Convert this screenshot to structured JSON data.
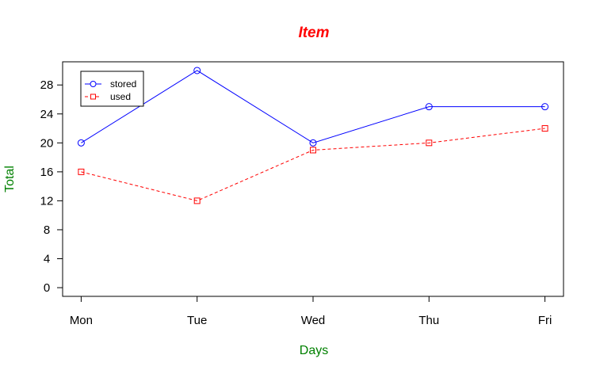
{
  "chart_data": {
    "type": "line",
    "title": "Item",
    "xlabel": "Days",
    "ylabel": "Total",
    "categories": [
      "Mon",
      "Tue",
      "Wed",
      "Thu",
      "Fri"
    ],
    "yticks": [
      0,
      4,
      8,
      12,
      16,
      20,
      24,
      28
    ],
    "ylim": [
      -1.2,
      31.2
    ],
    "grid": false,
    "legend_position": "top-left",
    "series": [
      {
        "name": "stored",
        "values": [
          20,
          30,
          20,
          25,
          25
        ],
        "color": "#0000ff",
        "marker": "circle",
        "line_style": "solid"
      },
      {
        "name": "used",
        "values": [
          16,
          12,
          19,
          20,
          22
        ],
        "color": "#ff0000",
        "marker": "square",
        "line_style": "dashed"
      }
    ],
    "colors": {
      "title": "#ff0000",
      "axis_labels": "#008000",
      "axes": "#000000"
    }
  }
}
